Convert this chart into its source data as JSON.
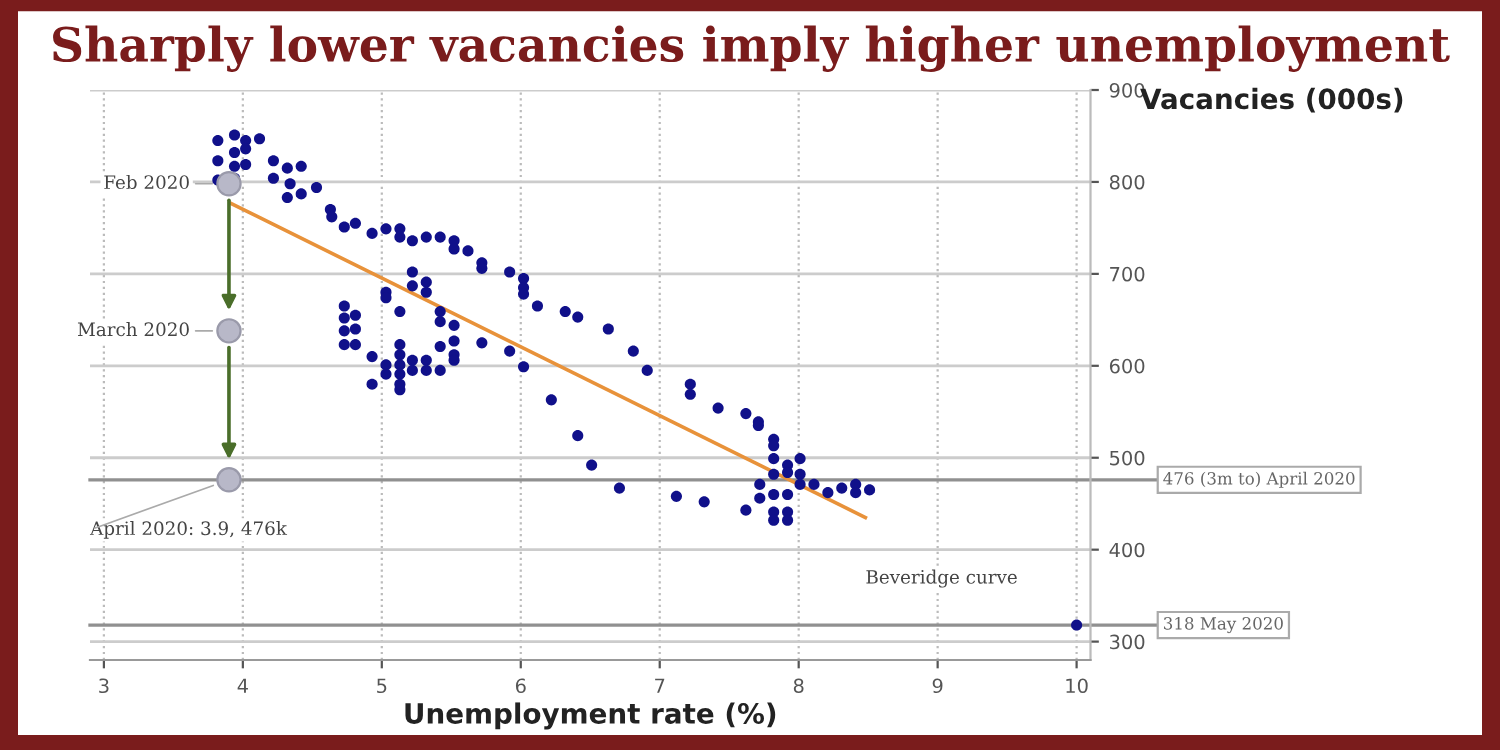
{
  "chart_data": {
    "type": "scatter",
    "title": "Sharply lower vacancies imply higher unemployment",
    "xlabel": "Unemployment rate (%)",
    "ylabel": "Vacancies (000s)",
    "xlim": [
      2.9,
      10.1
    ],
    "xticks": [
      3,
      4,
      5,
      6,
      7,
      8,
      9,
      10
    ],
    "ylim": [
      280,
      900
    ],
    "yticks": [
      300,
      400,
      500,
      600,
      700,
      800,
      900
    ],
    "grid": true,
    "marker": "circle",
    "series": [
      {
        "color": "#10108a",
        "x": [
          3.82,
          3.94,
          4.02,
          4.12,
          3.82,
          3.94,
          4.02,
          3.94,
          4.02,
          3.82,
          3.94,
          4.22,
          4.32,
          4.42,
          4.22,
          4.34,
          4.32,
          4.42,
          4.53,
          4.63,
          4.64,
          4.73,
          4.81,
          4.93,
          5.03,
          5.13,
          5.13,
          5.22,
          5.32,
          5.42,
          5.52,
          5.52,
          5.62,
          5.72,
          5.72,
          5.92,
          6.02,
          6.02,
          6.02,
          6.12,
          6.32,
          6.41,
          6.63,
          6.81,
          6.91,
          7.22,
          7.22,
          7.42,
          7.62,
          7.71,
          7.71,
          7.82,
          7.82,
          7.82,
          7.92,
          7.92,
          8.01,
          7.82,
          8.01,
          8.01,
          8.11,
          8.21,
          8.31,
          8.41,
          8.41,
          8.51,
          7.72,
          7.72,
          7.82,
          7.92,
          7.82,
          7.82,
          7.92,
          7.92,
          7.62,
          7.32,
          7.12,
          6.71,
          5.13,
          6.22,
          6.41,
          6.51,
          4.73,
          4.73,
          4.73,
          4.73,
          4.81,
          4.81,
          4.81,
          4.93,
          4.93,
          5.03,
          5.03,
          5.03,
          5.03,
          5.13,
          5.13,
          5.13,
          5.13,
          5.13,
          5.13,
          5.22,
          5.22,
          5.22,
          5.22,
          5.32,
          5.32,
          5.32,
          5.32,
          5.42,
          5.42,
          5.42,
          5.42,
          5.52,
          5.52,
          5.52,
          5.52,
          5.72,
          5.92,
          6.02,
          10
        ],
        "values": [
          845,
          851,
          845,
          847,
          823,
          832,
          836,
          817,
          819,
          802,
          804,
          823,
          815,
          817,
          804,
          798,
          783,
          787,
          794,
          770,
          762,
          751,
          755,
          744,
          749,
          749,
          740,
          736,
          740,
          740,
          736,
          727,
          725,
          712,
          706,
          702,
          695,
          685,
          678,
          665,
          659,
          653,
          640,
          616,
          595,
          580,
          569,
          554,
          548,
          539,
          535,
          520,
          513,
          499,
          492,
          484,
          499,
          482,
          482,
          471,
          471,
          462,
          467,
          471,
          462,
          465,
          471,
          456,
          460,
          460,
          441,
          432,
          441,
          432,
          443,
          452,
          458,
          467,
          574,
          563,
          524,
          492,
          665,
          652,
          638,
          623,
          655,
          640,
          623,
          610,
          580,
          680,
          674,
          601,
          591,
          659,
          623,
          612,
          601,
          591,
          580,
          702,
          687,
          606,
          595,
          691,
          680,
          606,
          595,
          659,
          648,
          621,
          595,
          644,
          627,
          612,
          606,
          625,
          616,
          599,
          318
        ]
      },
      {
        "color": "#b8b8c8",
        "x": [
          3.9,
          3.9,
          3.9
        ],
        "values": [
          798,
          638,
          476
        ]
      },
      {
        "type": "line",
        "marker": "none",
        "color": "#e8923a",
        "x": [
          3.91,
          8.48
        ],
        "values": [
          777,
          435
        ]
      }
    ],
    "ref_lines": [
      {
        "axis": "y",
        "value": 476,
        "label": "476 (3m to) April 2020",
        "color": "#909090"
      },
      {
        "axis": "y",
        "value": 318,
        "label": "318 May 2020",
        "color": "#909090"
      }
    ],
    "annotations": [
      "Feb 2020",
      "March 2020",
      {
        "text": "April 2020: 3.9, 476k",
        "x": 3.9,
        "y": 476
      },
      "Beveridge curve"
    ]
  }
}
